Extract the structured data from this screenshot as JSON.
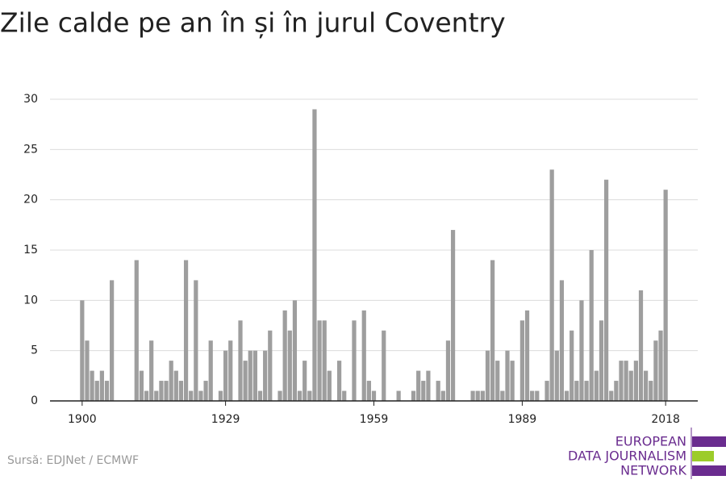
{
  "chart_data": {
    "type": "bar",
    "title": "Zile calde pe an în și în jurul Coventry",
    "x": [
      1900,
      1901,
      1902,
      1903,
      1904,
      1905,
      1906,
      1907,
      1908,
      1909,
      1910,
      1911,
      1912,
      1913,
      1914,
      1915,
      1916,
      1917,
      1918,
      1919,
      1920,
      1921,
      1922,
      1923,
      1924,
      1925,
      1926,
      1927,
      1928,
      1929,
      1930,
      1931,
      1932,
      1933,
      1934,
      1935,
      1936,
      1937,
      1938,
      1939,
      1940,
      1941,
      1942,
      1943,
      1944,
      1945,
      1946,
      1947,
      1948,
      1949,
      1950,
      1951,
      1952,
      1953,
      1954,
      1955,
      1956,
      1957,
      1958,
      1959,
      1960,
      1961,
      1962,
      1963,
      1964,
      1965,
      1966,
      1967,
      1968,
      1969,
      1970,
      1971,
      1972,
      1973,
      1974,
      1975,
      1976,
      1977,
      1978,
      1979,
      1980,
      1981,
      1982,
      1983,
      1984,
      1985,
      1986,
      1987,
      1988,
      1989,
      1990,
      1991,
      1992,
      1993,
      1994,
      1995,
      1996,
      1997,
      1998,
      1999,
      2000,
      2001,
      2002,
      2003,
      2004,
      2005,
      2006,
      2007,
      2008,
      2009,
      2010,
      2011,
      2012,
      2013,
      2014,
      2015,
      2016,
      2017,
      2018
    ],
    "values": [
      10,
      6,
      3,
      2,
      3,
      2,
      12,
      0,
      0,
      0,
      0,
      14,
      3,
      1,
      6,
      1,
      2,
      2,
      4,
      3,
      2,
      14,
      1,
      12,
      1,
      2,
      6,
      0,
      1,
      5,
      6,
      0,
      8,
      4,
      5,
      5,
      1,
      5,
      7,
      0,
      1,
      9,
      7,
      10,
      1,
      4,
      1,
      29,
      8,
      8,
      3,
      0,
      4,
      1,
      0,
      8,
      0,
      9,
      2,
      1,
      0,
      7,
      0,
      0,
      1,
      0,
      0,
      1,
      3,
      2,
      3,
      0,
      2,
      1,
      6,
      17,
      0,
      0,
      0,
      1,
      1,
      1,
      5,
      14,
      4,
      1,
      5,
      4,
      0,
      8,
      9,
      1,
      1,
      0,
      2,
      23,
      5,
      12,
      1,
      7,
      2,
      10,
      2,
      15,
      3,
      8,
      22,
      1,
      2,
      4,
      4,
      3,
      4,
      11,
      3,
      2,
      6,
      7,
      21
    ],
    "color": "#9e9e9e",
    "xlim": [
      1893.5,
      2024.5
    ],
    "xticks": [
      1900,
      1929,
      1959,
      1989,
      2018
    ],
    "ylim": [
      0,
      30
    ],
    "yticks": [
      0,
      5,
      10,
      15,
      20,
      25,
      30
    ],
    "grid": true
  },
  "source": "Sursă: EDJNet / ECMWF",
  "logo": {
    "lines": [
      "EUROPEAN",
      "DATA JOURNALISM",
      "NETWORK"
    ]
  }
}
